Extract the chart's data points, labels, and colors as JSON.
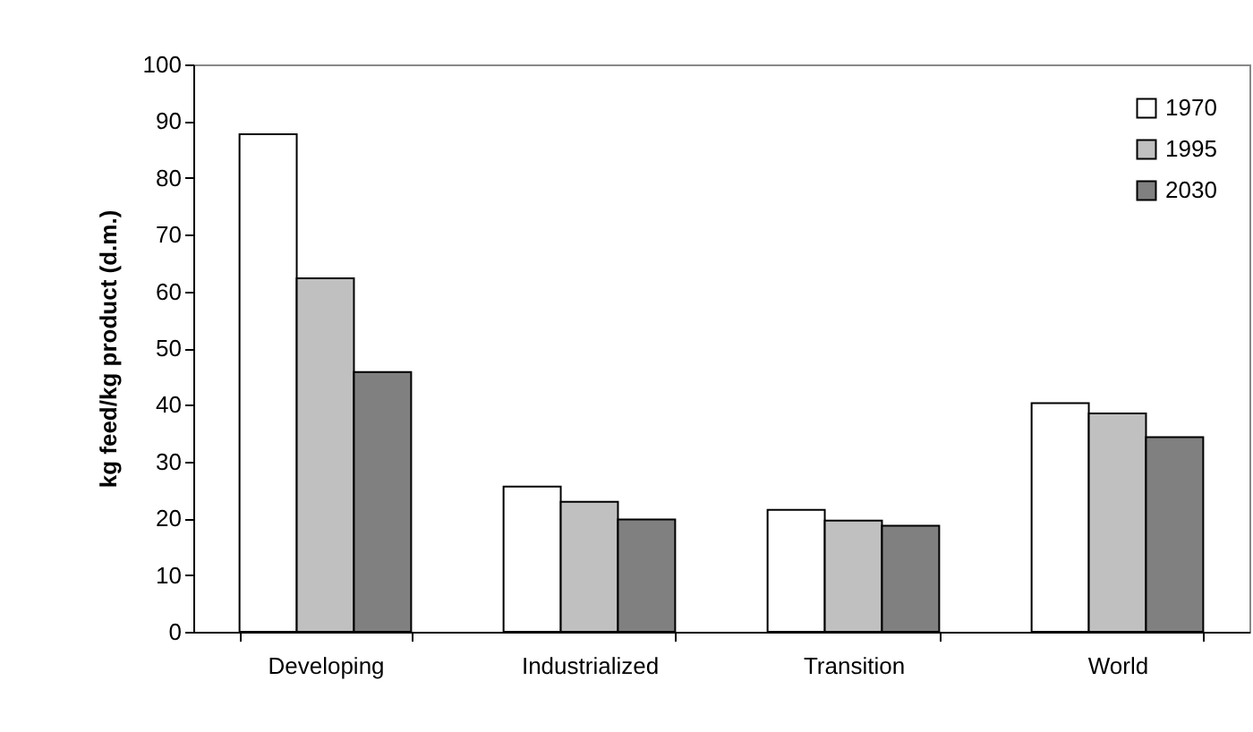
{
  "chart_data": {
    "type": "bar",
    "ylabel": "kg feed/kg product (d.m.)",
    "categories": [
      "Developing",
      "Industrialized",
      "Transition",
      "World"
    ],
    "series": [
      {
        "name": "1970",
        "color": "#ffffff",
        "values": [
          87.7,
          25.6,
          21.5,
          40.3
        ]
      },
      {
        "name": "1995",
        "color": "#c0c0c0",
        "values": [
          62.3,
          22.9,
          19.6,
          38.5
        ]
      },
      {
        "name": "2030",
        "color": "#808080",
        "values": [
          45.8,
          19.8,
          18.7,
          34.3
        ]
      }
    ],
    "ylim": [
      0,
      100
    ],
    "yticks": [
      0,
      10,
      20,
      30,
      40,
      50,
      60,
      70,
      80,
      90,
      100
    ],
    "grid": false,
    "legend": "top right"
  }
}
